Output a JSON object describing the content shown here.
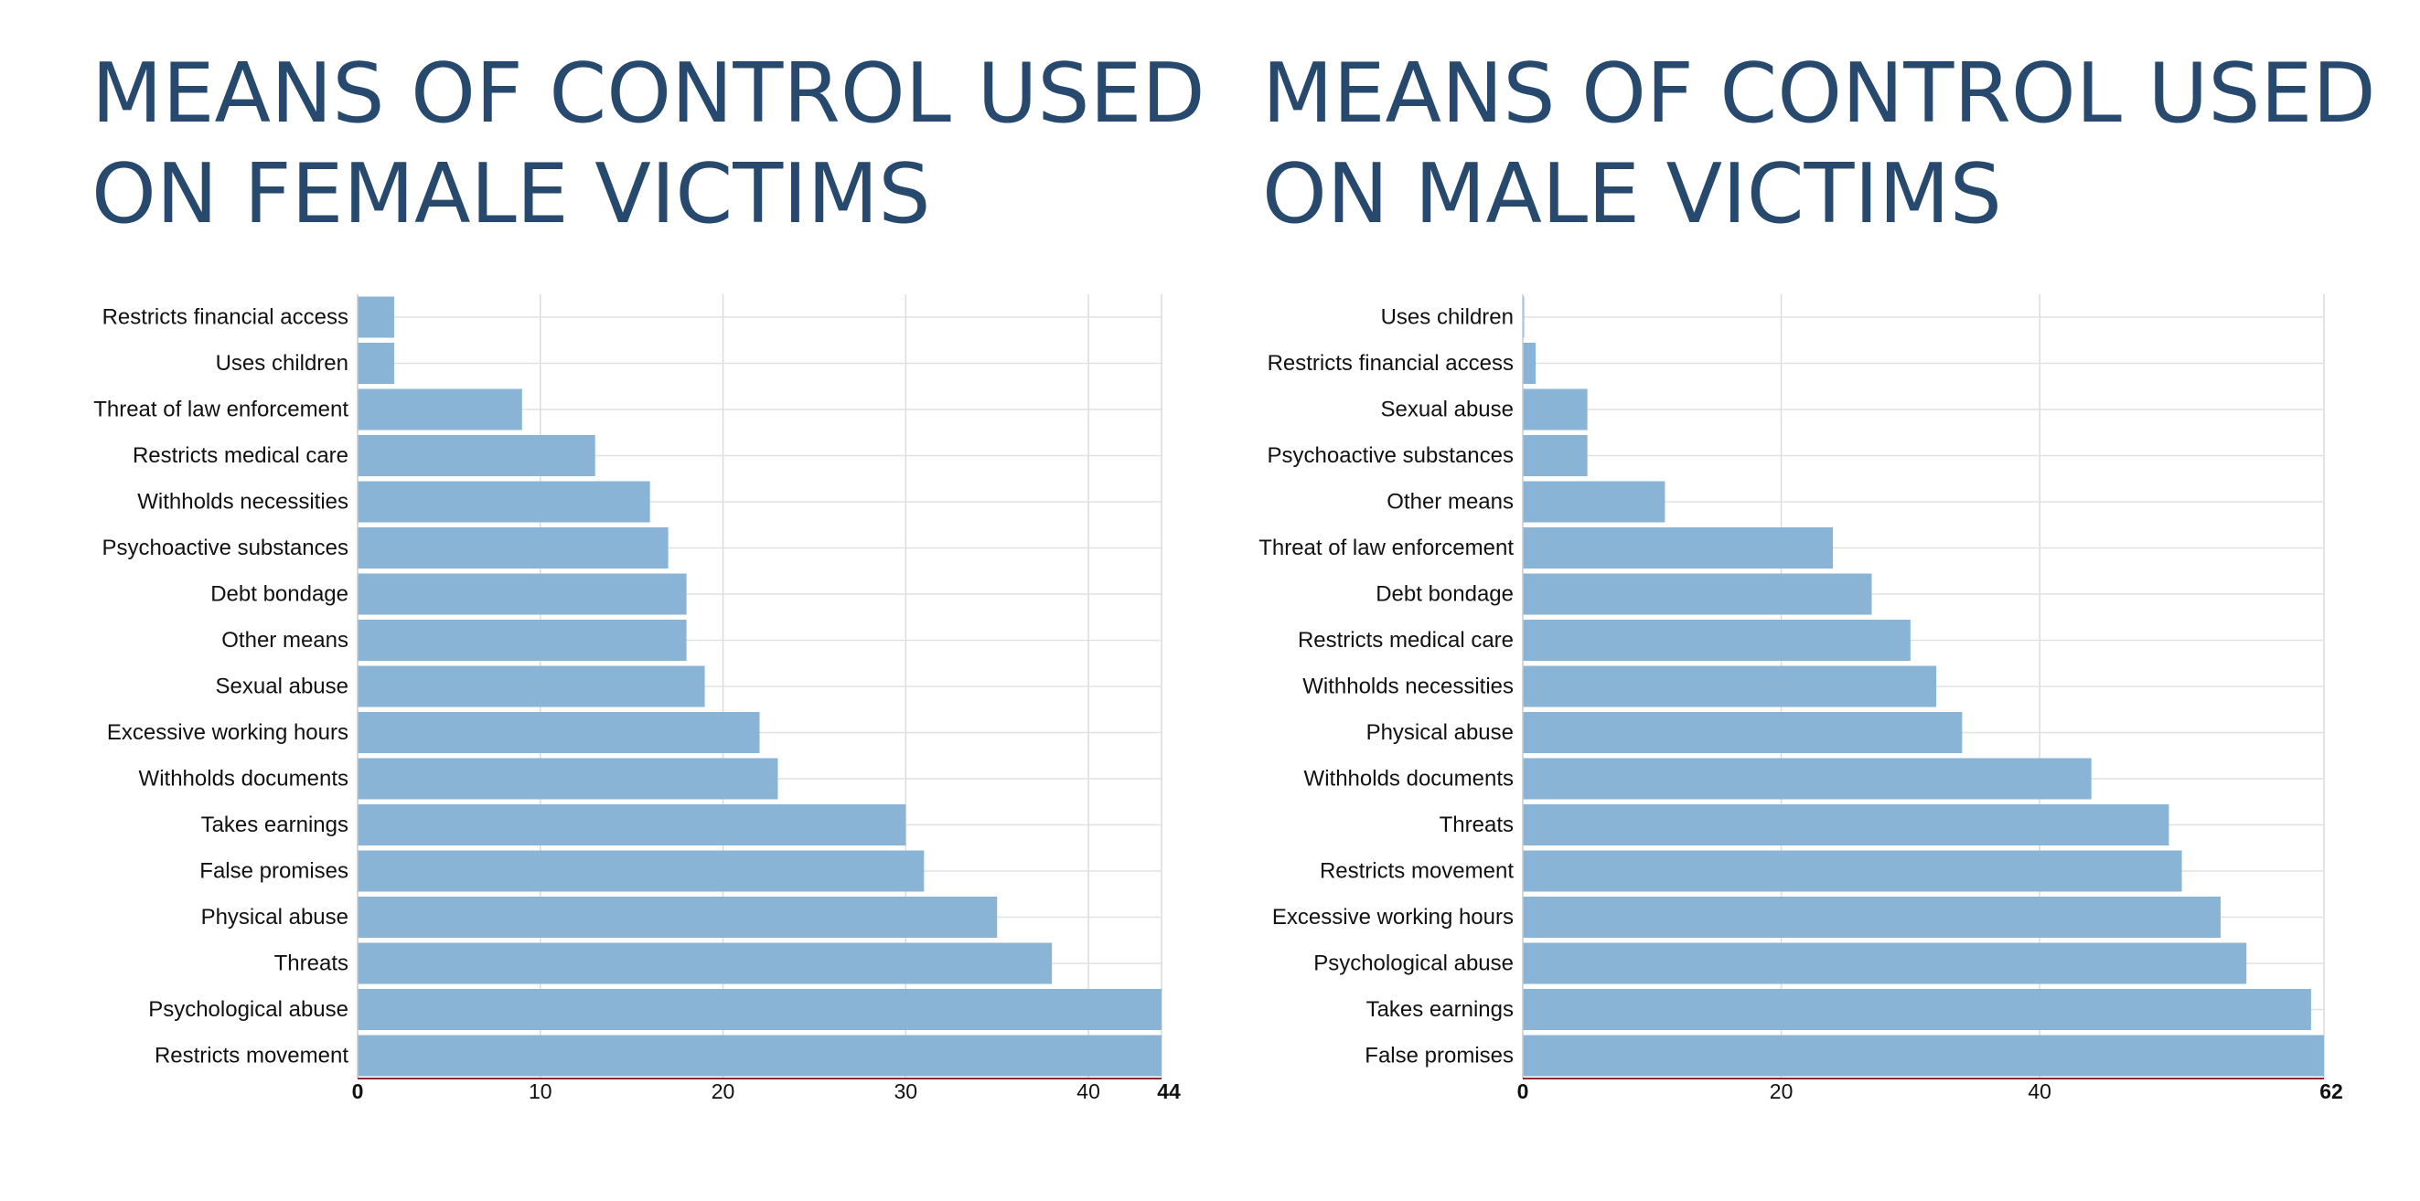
{
  "chart_data": [
    {
      "type": "bar",
      "orientation": "horizontal",
      "title_lines": [
        "MEANS OF CONTROL USED",
        "ON FEMALE VICTIMS"
      ],
      "categories": [
        "Restricts financial access",
        "Uses children",
        "Threat of law enforcement",
        "Restricts medical care",
        "Withholds necessities",
        "Psychoactive substances",
        "Debt bondage",
        "Other means",
        "Sexual abuse",
        "Excessive working hours",
        "Withholds documents",
        "Takes earnings",
        "False promises",
        "Physical abuse",
        "Threats",
        "Psychological abuse",
        "Restricts movement"
      ],
      "values": [
        2,
        2,
        9,
        13,
        16,
        17,
        18,
        18,
        19,
        22,
        23,
        30,
        31,
        35,
        38,
        44,
        44
      ],
      "xticks": [
        0,
        10,
        20,
        30,
        40,
        44
      ],
      "xlim": [
        0,
        44
      ],
      "xlabel": "",
      "ylabel": "",
      "grid": true,
      "bar_color": "#8ab4d5"
    },
    {
      "type": "bar",
      "orientation": "horizontal",
      "title_lines": [
        "MEANS OF CONTROL USED",
        "ON MALE VICTIMS"
      ],
      "categories": [
        "Uses children",
        "Restricts financial access",
        "Sexual abuse",
        "Psychoactive substances",
        "Other means",
        "Threat of law enforcement",
        "Debt bondage",
        "Restricts medical care",
        "Withholds necessities",
        "Physical abuse",
        "Withholds documents",
        "Threats",
        "Restricts movement",
        "Excessive working hours",
        "Psychological abuse",
        "Takes earnings",
        "False promises"
      ],
      "values": [
        0.1,
        1,
        5,
        5,
        11,
        24,
        27,
        30,
        32,
        34,
        44,
        50,
        51,
        54,
        56,
        61,
        62
      ],
      "xticks": [
        0,
        20,
        40,
        62
      ],
      "xlim": [
        0,
        62
      ],
      "xlabel": "",
      "ylabel": "",
      "grid": true,
      "bar_color": "#8ab4d5"
    }
  ]
}
